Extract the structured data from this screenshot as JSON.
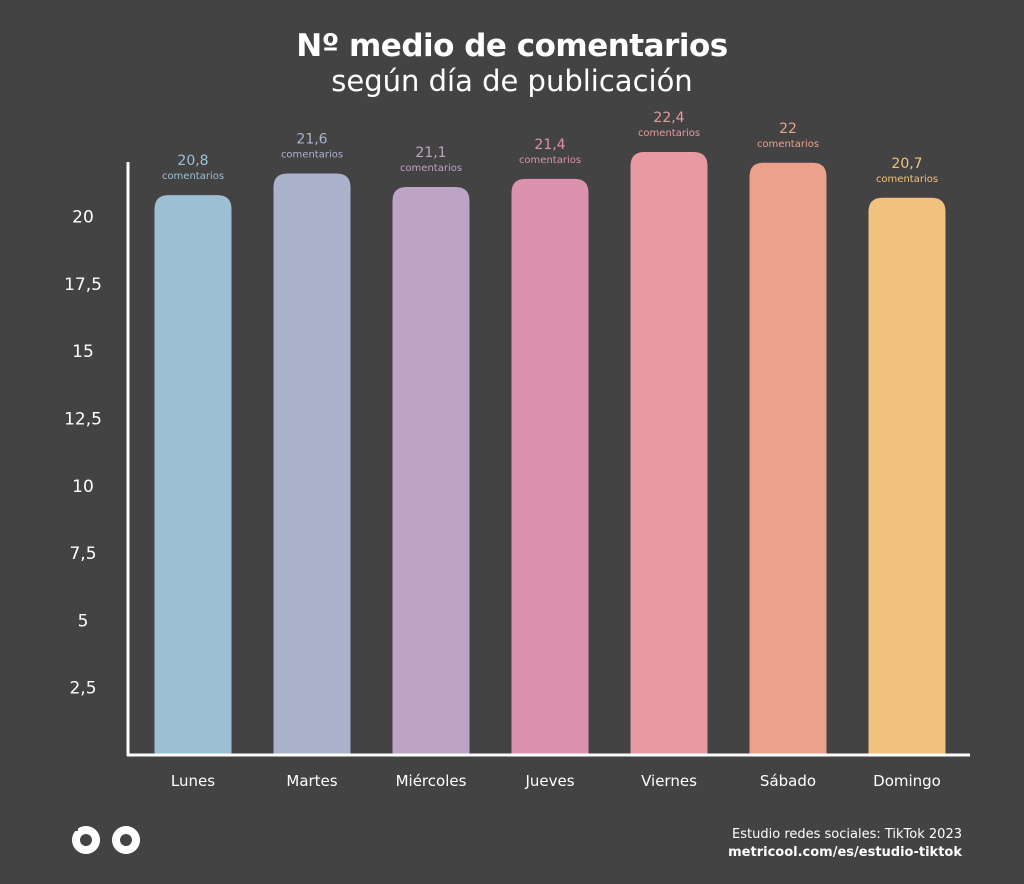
{
  "header": {
    "title": "Nº medio de comentarios",
    "subtitle": "según día de publicación"
  },
  "chart_data": {
    "type": "bar",
    "categories": [
      "Lunes",
      "Martes",
      "Miércoles",
      "Jueves",
      "Viernes",
      "Sábado",
      "Domingo"
    ],
    "values": [
      20.8,
      21.6,
      21.1,
      21.4,
      22.4,
      22,
      20.7
    ],
    "value_labels": [
      "20,8",
      "21,6",
      "21,1",
      "21,4",
      "22,4",
      "22",
      "20,7"
    ],
    "value_unit": "comentarios",
    "y_ticks": [
      "2,5",
      "5",
      "7,5",
      "10",
      "12,5",
      "15",
      "17,5",
      "20"
    ],
    "y_tick_values": [
      2.5,
      5,
      7.5,
      10,
      12.5,
      15,
      17.5,
      20
    ],
    "ylim": [
      0,
      22.4
    ],
    "grid": false,
    "colors": [
      "#9dbfd3",
      "#abb2cc",
      "#bda4c6",
      "#dc92ae",
      "#e79aa1",
      "#eba18d",
      "#f0c27e"
    ],
    "label_colors": [
      "#9dbfd3",
      "#abb2cc",
      "#bda4c6",
      "#dc92ae",
      "#e79aa1",
      "#eba18d",
      "#f0c27e"
    ]
  },
  "footer": {
    "source": "Estudio redes sociales: TikTok 2023",
    "url": "metricool.com/es/estudio-tiktok"
  },
  "logo": {
    "icon": "metricool-logo-icon"
  }
}
